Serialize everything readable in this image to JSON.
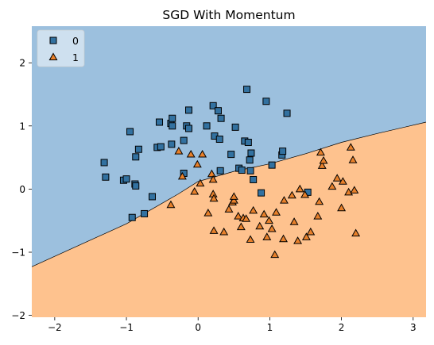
{
  "chart_data": {
    "type": "scatter",
    "title": "SGD With Momentum",
    "xlabel": "",
    "ylabel": "",
    "xlim": [
      -2.32,
      3.18
    ],
    "ylim": [
      -2.03,
      2.58
    ],
    "x_ticks": [
      -2,
      -1,
      0,
      1,
      2,
      3
    ],
    "y_ticks": [
      -2,
      -1,
      0,
      1,
      2
    ],
    "grid": false,
    "legend_position": "top-left",
    "regions": [
      {
        "label": "0",
        "color": "#9cc0de"
      },
      {
        "label": "1",
        "color": "#fec28e"
      }
    ],
    "decision_boundary": [
      {
        "x": -2.32,
        "y": -1.23
      },
      {
        "x": -1.0,
        "y": -0.55
      },
      {
        "x": -0.28,
        "y": -0.08
      },
      {
        "x": 0.0,
        "y": 0.12
      },
      {
        "x": 0.5,
        "y": 0.28
      },
      {
        "x": 1.0,
        "y": 0.4
      },
      {
        "x": 1.5,
        "y": 0.56
      },
      {
        "x": 2.0,
        "y": 0.74
      },
      {
        "x": 2.5,
        "y": 0.88
      },
      {
        "x": 3.18,
        "y": 1.06
      }
    ],
    "series": [
      {
        "name": "0",
        "marker": "square",
        "color": "#3271a0",
        "points": [
          {
            "x": -1.31,
            "y": 0.42
          },
          {
            "x": -1.29,
            "y": 0.19
          },
          {
            "x": -1.04,
            "y": 0.14
          },
          {
            "x": -1.0,
            "y": 0.16
          },
          {
            "x": -0.88,
            "y": 0.08
          },
          {
            "x": -0.87,
            "y": 0.05
          },
          {
            "x": -0.95,
            "y": 0.91
          },
          {
            "x": -0.87,
            "y": 0.51
          },
          {
            "x": -0.83,
            "y": 0.63
          },
          {
            "x": -0.92,
            "y": -0.45
          },
          {
            "x": -0.75,
            "y": -0.39
          },
          {
            "x": -0.64,
            "y": -0.12
          },
          {
            "x": -0.57,
            "y": 0.66
          },
          {
            "x": -0.52,
            "y": 0.67
          },
          {
            "x": -0.54,
            "y": 1.06
          },
          {
            "x": -0.38,
            "y": 1.04
          },
          {
            "x": -0.37,
            "y": 0.71
          },
          {
            "x": -0.36,
            "y": 1.0
          },
          {
            "x": -0.36,
            "y": 1.12
          },
          {
            "x": -0.2,
            "y": 0.77
          },
          {
            "x": -0.2,
            "y": 0.25
          },
          {
            "x": -0.16,
            "y": 1.0
          },
          {
            "x": -0.13,
            "y": 0.96
          },
          {
            "x": -0.13,
            "y": 1.25
          },
          {
            "x": 0.12,
            "y": 1.0
          },
          {
            "x": 0.21,
            "y": 1.32
          },
          {
            "x": 0.23,
            "y": 0.84
          },
          {
            "x": 0.28,
            "y": 1.24
          },
          {
            "x": 0.3,
            "y": 0.79
          },
          {
            "x": 0.32,
            "y": 1.12
          },
          {
            "x": 0.31,
            "y": 0.29
          },
          {
            "x": 0.46,
            "y": 0.55
          },
          {
            "x": 0.52,
            "y": 0.98
          },
          {
            "x": 0.57,
            "y": 0.33
          },
          {
            "x": 0.61,
            "y": 0.3
          },
          {
            "x": 0.65,
            "y": 0.76
          },
          {
            "x": 0.68,
            "y": 1.58
          },
          {
            "x": 0.7,
            "y": 0.74
          },
          {
            "x": 0.72,
            "y": 0.46
          },
          {
            "x": 0.74,
            "y": 0.57
          },
          {
            "x": 0.73,
            "y": 0.29
          },
          {
            "x": 0.77,
            "y": 0.15
          },
          {
            "x": 0.88,
            "y": -0.06
          },
          {
            "x": 0.95,
            "y": 1.39
          },
          {
            "x": 1.03,
            "y": 0.38
          },
          {
            "x": 1.17,
            "y": 0.54
          },
          {
            "x": 1.18,
            "y": 0.6
          },
          {
            "x": 1.24,
            "y": 1.2
          },
          {
            "x": 1.53,
            "y": -0.05
          }
        ]
      },
      {
        "name": "1",
        "marker": "triangle",
        "color": "#e8802a",
        "points": [
          {
            "x": -0.38,
            "y": -0.25
          },
          {
            "x": -0.27,
            "y": 0.6
          },
          {
            "x": -0.22,
            "y": 0.2
          },
          {
            "x": -0.1,
            "y": 0.55
          },
          {
            "x": -0.05,
            "y": -0.04
          },
          {
            "x": -0.01,
            "y": 0.39
          },
          {
            "x": 0.06,
            "y": 0.55
          },
          {
            "x": 0.03,
            "y": 0.09
          },
          {
            "x": 0.14,
            "y": -0.38
          },
          {
            "x": 0.19,
            "y": 0.24
          },
          {
            "x": 0.21,
            "y": 0.15
          },
          {
            "x": 0.21,
            "y": -0.08
          },
          {
            "x": 0.22,
            "y": -0.66
          },
          {
            "x": 0.22,
            "y": -0.15
          },
          {
            "x": 0.36,
            "y": -0.68
          },
          {
            "x": 0.43,
            "y": -0.32
          },
          {
            "x": 0.48,
            "y": -0.21
          },
          {
            "x": 0.5,
            "y": -0.18
          },
          {
            "x": 0.5,
            "y": -0.12
          },
          {
            "x": 0.56,
            "y": -0.43
          },
          {
            "x": 0.6,
            "y": -0.6
          },
          {
            "x": 0.63,
            "y": -0.46
          },
          {
            "x": 0.67,
            "y": -0.47
          },
          {
            "x": 0.73,
            "y": -0.8
          },
          {
            "x": 0.77,
            "y": -0.34
          },
          {
            "x": 0.86,
            "y": -0.59
          },
          {
            "x": 0.92,
            "y": -0.4
          },
          {
            "x": 0.96,
            "y": -0.76
          },
          {
            "x": 0.99,
            "y": -0.5
          },
          {
            "x": 1.03,
            "y": -0.63
          },
          {
            "x": 1.07,
            "y": -1.04
          },
          {
            "x": 1.09,
            "y": -0.37
          },
          {
            "x": 1.19,
            "y": -0.79
          },
          {
            "x": 1.2,
            "y": -0.18
          },
          {
            "x": 1.31,
            "y": -0.1
          },
          {
            "x": 1.34,
            "y": -0.52
          },
          {
            "x": 1.39,
            "y": -0.82
          },
          {
            "x": 1.42,
            "y": -0.0
          },
          {
            "x": 1.49,
            "y": -0.09
          },
          {
            "x": 1.51,
            "y": -0.76
          },
          {
            "x": 1.57,
            "y": -0.68
          },
          {
            "x": 1.67,
            "y": -0.43
          },
          {
            "x": 1.69,
            "y": -0.2
          },
          {
            "x": 1.71,
            "y": 0.58
          },
          {
            "x": 1.73,
            "y": 0.37
          },
          {
            "x": 1.75,
            "y": 0.45
          },
          {
            "x": 1.87,
            "y": 0.04
          },
          {
            "x": 1.94,
            "y": 0.17
          },
          {
            "x": 2.0,
            "y": -0.3
          },
          {
            "x": 2.02,
            "y": 0.12
          },
          {
            "x": 2.1,
            "y": -0.05
          },
          {
            "x": 2.13,
            "y": 0.66
          },
          {
            "x": 2.16,
            "y": 0.46
          },
          {
            "x": 2.18,
            "y": -0.02
          },
          {
            "x": 2.2,
            "y": -0.7
          }
        ]
      }
    ]
  }
}
